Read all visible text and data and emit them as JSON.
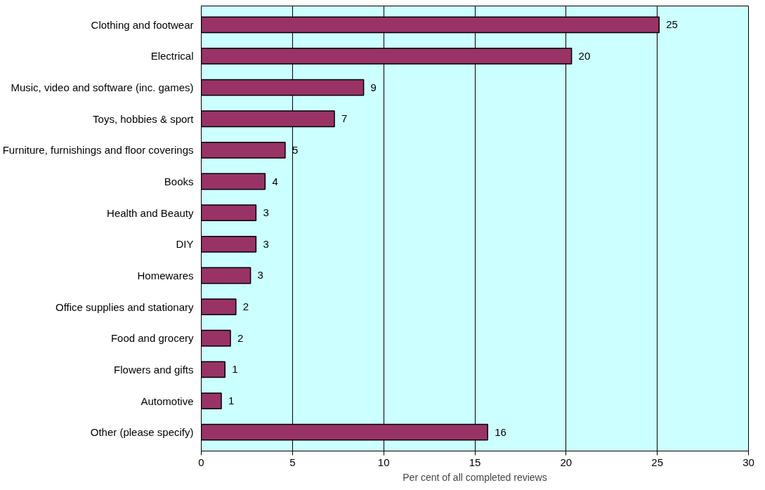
{
  "chart_data": {
    "type": "bar",
    "orientation": "horizontal",
    "xlabel": "Per cent of all completed reviews",
    "categories": [
      "Clothing and footwear",
      "Electrical",
      "Music, video and software (inc. games)",
      "Toys, hobbies & sport",
      "Furniture, furnishings and floor coverings",
      "Books",
      "Health and Beauty",
      "DIY",
      "Homewares",
      "Office supplies and stationary",
      "Food and grocery",
      "Flowers and gifts",
      "Automotive",
      "Other (please specify)"
    ],
    "values": [
      25.1,
      20.3,
      8.9,
      7.3,
      4.6,
      3.5,
      3.0,
      3.0,
      2.7,
      1.9,
      1.6,
      1.3,
      1.1,
      15.7
    ],
    "value_labels": [
      "25",
      "20",
      "9",
      "7",
      "5",
      "4",
      "3",
      "3",
      "3",
      "2",
      "2",
      "1",
      "1",
      "16"
    ],
    "color": "#993366",
    "xlim": [
      0,
      30
    ],
    "xticks": [
      0,
      5,
      10,
      15,
      20,
      25,
      30
    ],
    "grid": "x"
  }
}
